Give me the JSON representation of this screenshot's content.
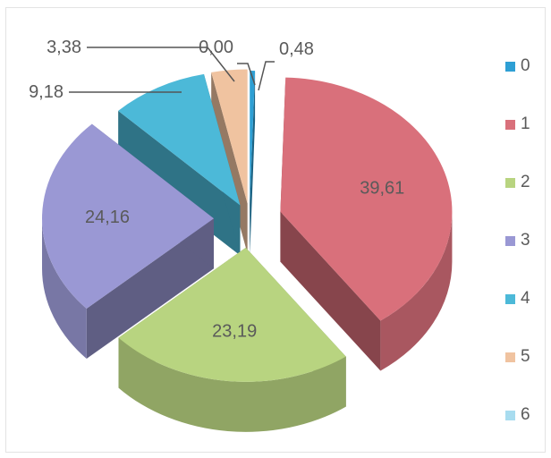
{
  "chart_data": {
    "type": "pie",
    "style": "3d-exploded",
    "title": "",
    "categories": [
      "0",
      "1",
      "2",
      "3",
      "4",
      "5",
      "6"
    ],
    "values": [
      0.48,
      39.61,
      23.19,
      24.16,
      9.18,
      3.38,
      0.0
    ],
    "data_labels": [
      "0,48",
      "39,61",
      "23,19",
      "24,16",
      "9,18",
      "3,38",
      "0,00"
    ],
    "colors": [
      "#2e9fd4",
      "#d9707b",
      "#b8d480",
      "#9a98d4",
      "#4cb9d8",
      "#f0c3a0",
      "#a8dcef"
    ],
    "legend": {
      "position": "right",
      "entries": [
        "0",
        "1",
        "2",
        "3",
        "4",
        "5",
        "6"
      ]
    }
  }
}
